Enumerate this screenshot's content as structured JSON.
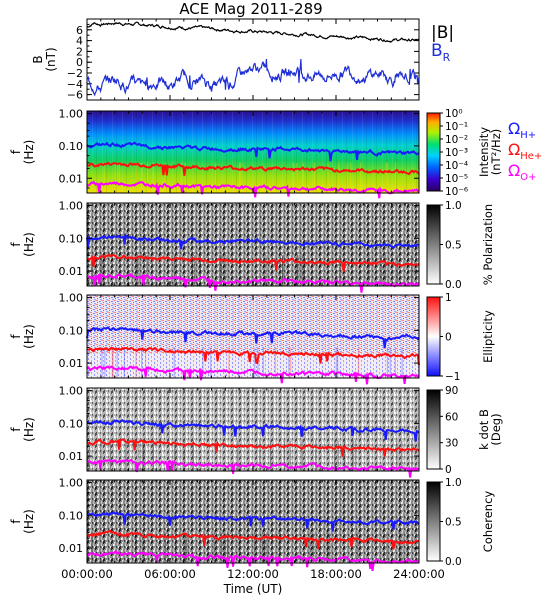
{
  "title": "ACE Mag 2011-289",
  "legend": {
    "b_mag": "|B|",
    "b_r": "B",
    "b_r_sub": "R"
  },
  "colors": {
    "bmag": "#000000",
    "br": "#1f2fd6",
    "h": "#1a1aff",
    "he": "#ff1010",
    "o": "#ff00ff"
  },
  "chart_data": [
    {
      "type": "line",
      "ylabel": "B",
      "ylabel2": "(nT)",
      "ylim": [
        -7,
        8
      ],
      "yticks": [
        "6",
        "4",
        "2",
        "0",
        "−2",
        "−4",
        "−6"
      ],
      "series": [
        {
          "name": "|B|",
          "x": [
            0,
            0.5,
            1,
            2,
            3,
            4,
            6,
            8,
            10,
            12,
            14,
            16,
            18,
            20,
            22,
            24
          ],
          "values": [
            6.5,
            7.3,
            7.0,
            7.3,
            7.1,
            6.9,
            6.6,
            6.3,
            6.0,
            5.7,
            5.4,
            5.1,
            4.8,
            4.5,
            4.2,
            4.0
          ]
        },
        {
          "name": "B_R",
          "x": [
            0,
            1,
            2,
            3,
            4,
            5,
            6,
            7,
            8,
            9,
            10,
            11,
            12,
            13,
            14,
            15,
            16,
            17,
            18,
            19,
            20,
            21,
            22,
            23,
            24
          ],
          "values": [
            -3.5,
            -4.5,
            -3.0,
            -4.0,
            -5.0,
            -3.5,
            -4.5,
            -3.0,
            -3.5,
            -4.0,
            -4.5,
            -2.5,
            -1.0,
            -1.5,
            -2.0,
            -1.5,
            -2.0,
            -2.5,
            -2.0,
            -1.5,
            -2.5,
            -2.0,
            -3.0,
            -2.5,
            -3.0
          ]
        }
      ]
    },
    {
      "type": "heatmap",
      "ylabel": "f",
      "ylabel2": "(Hz)",
      "yticks": [
        "1.00",
        "0.10",
        "0.01"
      ],
      "colorbar_label": "Intensity",
      "colorbar_label2": "(nT²/Hz)",
      "colorbar_ticks": [
        "10⁰",
        "10⁻¹",
        "10⁻²",
        "10⁻³",
        "10⁻⁴",
        "10⁻⁵",
        "10⁻⁶"
      ],
      "gyro_labels": [
        "ΩH+",
        "ΩHe+",
        "ΩO+"
      ]
    },
    {
      "type": "heatmap",
      "ylabel": "f",
      "ylabel2": "(Hz)",
      "yticks": [
        "1.00",
        "0.10",
        "0.01"
      ],
      "colorbar_label": "% Polarization",
      "colorbar_ticks": [
        "1.0",
        "0.5",
        "0.0"
      ]
    },
    {
      "type": "heatmap",
      "ylabel": "f",
      "ylabel2": "(Hz)",
      "yticks": [
        "1.00",
        "0.10",
        "0.01"
      ],
      "colorbar_label": "Ellipticity",
      "colorbar_ticks": [
        "1",
        "0",
        "−1"
      ]
    },
    {
      "type": "heatmap",
      "ylabel": "f",
      "ylabel2": "(Hz)",
      "yticks": [
        "1.00",
        "0.10",
        "0.01"
      ],
      "colorbar_label": "k dot B",
      "colorbar_label2": "(Deg)",
      "colorbar_ticks": [
        "90",
        "60",
        "30",
        "0"
      ]
    },
    {
      "type": "heatmap",
      "ylabel": "f",
      "ylabel2": "(Hz)",
      "yticks": [
        "1.00",
        "0.10",
        "0.01"
      ],
      "colorbar_label": "Coherency",
      "colorbar_ticks": [
        "1.0",
        "0.5",
        "0.0"
      ]
    }
  ],
  "gyro_freqs": {
    "x": [
      0,
      2,
      4,
      6,
      8,
      10,
      12,
      14,
      16,
      18,
      20,
      22,
      24
    ],
    "h": [
      0.1,
      0.11,
      0.1,
      0.09,
      0.085,
      0.08,
      0.08,
      0.08,
      0.075,
      0.07,
      0.065,
      0.06,
      0.06
    ],
    "he": [
      0.025,
      0.028,
      0.026,
      0.024,
      0.022,
      0.021,
      0.02,
      0.02,
      0.019,
      0.018,
      0.017,
      0.016,
      0.016
    ],
    "o": [
      0.0065,
      0.007,
      0.0066,
      0.006,
      0.0056,
      0.0053,
      0.0051,
      0.005,
      0.0048,
      0.0046,
      0.0043,
      0.004,
      0.004
    ]
  },
  "xaxis": {
    "label": "Time (UT)",
    "ticks": [
      "00:00:00",
      "06:00:00",
      "12:00:00",
      "18:00:00",
      "24:00:00"
    ],
    "xlim": [
      0,
      24
    ]
  }
}
